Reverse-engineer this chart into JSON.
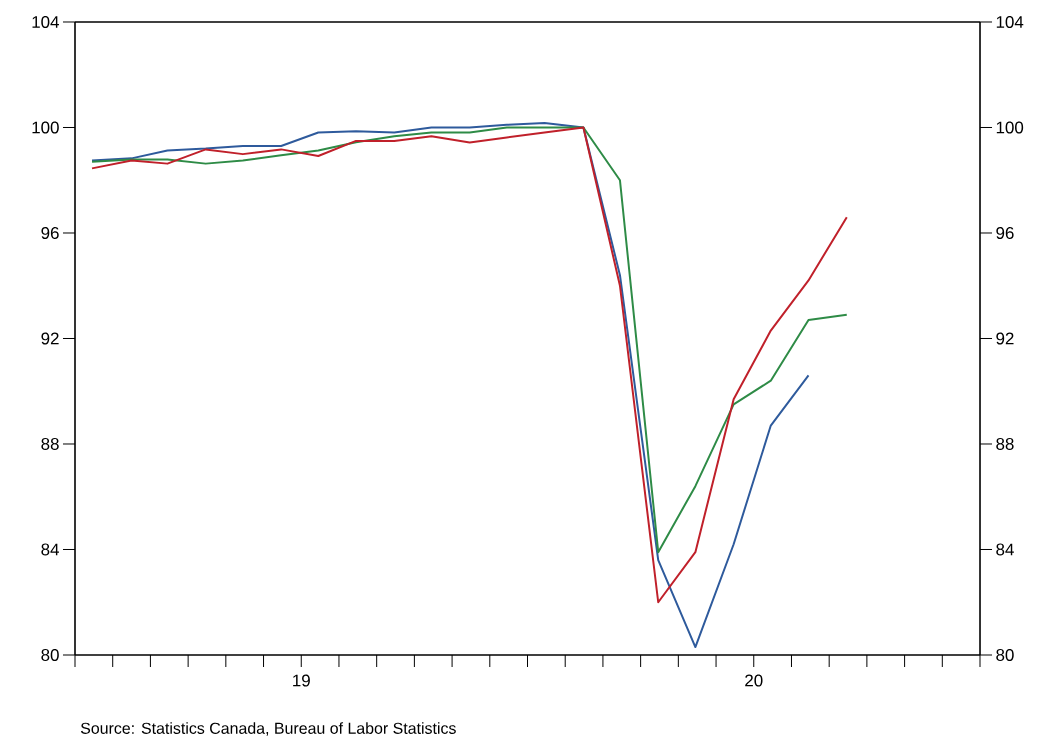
{
  "chart_data": {
    "type": "line",
    "x": [
      "2019-01-15",
      "2019-02-15",
      "2019-03-15",
      "2019-04-15",
      "2019-05-15",
      "2019-06-15",
      "2019-07-15",
      "2019-08-15",
      "2019-09-15",
      "2019-10-15",
      "2019-11-15",
      "2019-12-15",
      "2020-01-15",
      "2020-02-15",
      "2020-03-15",
      "2020-04-15",
      "2020-05-15",
      "2020-06-15",
      "2020-07-15",
      "2020-08-15",
      "2020-09-15"
    ],
    "series": [
      {
        "color": "#2e5a9c",
        "values": [
          98.75,
          98.83,
          99.13,
          99.2,
          99.3,
          99.3,
          99.81,
          99.86,
          99.81,
          100.0,
          100.0,
          100.1,
          100.17,
          100.0,
          94.4,
          83.6,
          80.3,
          84.2,
          88.7,
          90.6,
          null
        ]
      },
      {
        "color": "#2e8b46",
        "values": [
          98.7,
          98.79,
          98.79,
          98.63,
          98.75,
          98.95,
          99.13,
          99.44,
          99.67,
          99.81,
          99.81,
          100.0,
          100.0,
          100.0,
          98.0,
          83.9,
          86.4,
          89.5,
          90.4,
          92.7,
          92.9
        ]
      },
      {
        "color": "#c0202a",
        "values": [
          98.45,
          98.75,
          98.63,
          99.17,
          98.99,
          99.17,
          98.92,
          99.49,
          99.49,
          99.67,
          99.43,
          99.62,
          99.81,
          100.0,
          94.0,
          82.0,
          83.9,
          89.7,
          92.3,
          94.2,
          96.6
        ]
      }
    ],
    "xlim": [
      "2019-01-01",
      "2021-01-01"
    ],
    "xticks": [
      {
        "value": "2019-01-01",
        "label": null
      },
      {
        "value": "2019-02-01",
        "label": null
      },
      {
        "value": "2019-03-01",
        "label": null
      },
      {
        "value": "2019-04-01",
        "label": null
      },
      {
        "value": "2019-05-01",
        "label": null
      },
      {
        "value": "2019-06-01",
        "label": null
      },
      {
        "value": "2019-07-01",
        "label": "19"
      },
      {
        "value": "2019-08-01",
        "label": null
      },
      {
        "value": "2019-09-01",
        "label": null
      },
      {
        "value": "2019-10-01",
        "label": null
      },
      {
        "value": "2019-11-01",
        "label": null
      },
      {
        "value": "2019-12-01",
        "label": null
      },
      {
        "value": "2020-01-01",
        "label": null
      },
      {
        "value": "2020-02-01",
        "label": null
      },
      {
        "value": "2020-03-01",
        "label": null
      },
      {
        "value": "2020-04-01",
        "label": null
      },
      {
        "value": "2020-05-01",
        "label": null
      },
      {
        "value": "2020-06-01",
        "label": null
      },
      {
        "value": "2020-07-01",
        "label": "20"
      },
      {
        "value": "2020-08-01",
        "label": null
      },
      {
        "value": "2020-09-01",
        "label": null
      },
      {
        "value": "2020-10-01",
        "label": null
      },
      {
        "value": "2020-11-01",
        "label": null
      },
      {
        "value": "2020-12-01",
        "label": null
      },
      {
        "value": "2021-01-01",
        "label": null
      }
    ],
    "ylim": [
      80,
      104
    ],
    "yticks": [
      80,
      84,
      88,
      92,
      96,
      100,
      104
    ],
    "y2lim": [
      80,
      104
    ],
    "y2ticks": [
      80,
      84,
      88,
      92,
      96,
      100,
      104
    ],
    "annotations": [
      "Source:  Statistics Canada, Bureau of Labor Statistics"
    ]
  }
}
